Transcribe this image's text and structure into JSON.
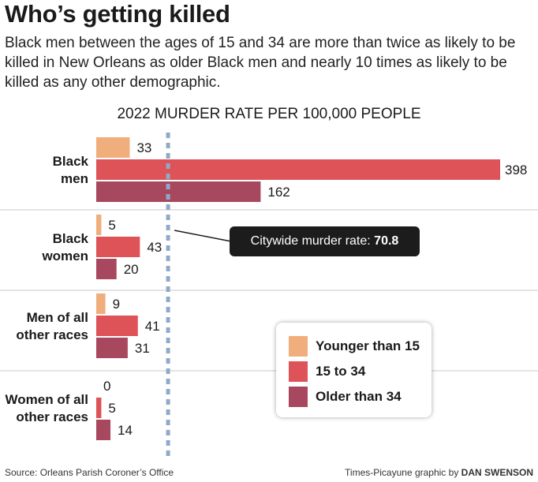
{
  "title": "Who’s getting killed",
  "subtitle": "Black men between the ages of 15 and 34 are more than twice as likely to be killed in New Orleans as older Black men and nearly 10 times as likely to be killed as any other demographic.",
  "chart_data": {
    "type": "bar",
    "orientation": "horizontal",
    "title": "2022 MURDER RATE PER 100,000 PEOPLE",
    "categories": [
      [
        "Black",
        "men"
      ],
      [
        "Black",
        "women"
      ],
      [
        "Men of all",
        "other races"
      ],
      [
        "Women of all",
        "other races"
      ]
    ],
    "series": [
      {
        "name": "Younger than 15",
        "color": "#f0ae7c",
        "values": [
          33,
          5,
          9,
          0
        ]
      },
      {
        "name": "15 to 34",
        "color": "#dd5358",
        "values": [
          398,
          43,
          41,
          5
        ]
      },
      {
        "name": "Older than 34",
        "color": "#a8485f",
        "values": [
          162,
          20,
          31,
          14
        ]
      }
    ],
    "reference_line": {
      "value": 70.8,
      "label": "Citywide murder rate:",
      "value_label": "70.8"
    },
    "legend_position": "bottom-right",
    "grid": false
  },
  "footer": {
    "source": "Source: Orleans Parish Coroner’s Office",
    "credit_prefix": "Times-Picayune graphic by ",
    "credit_name": "DAN SWENSON"
  }
}
